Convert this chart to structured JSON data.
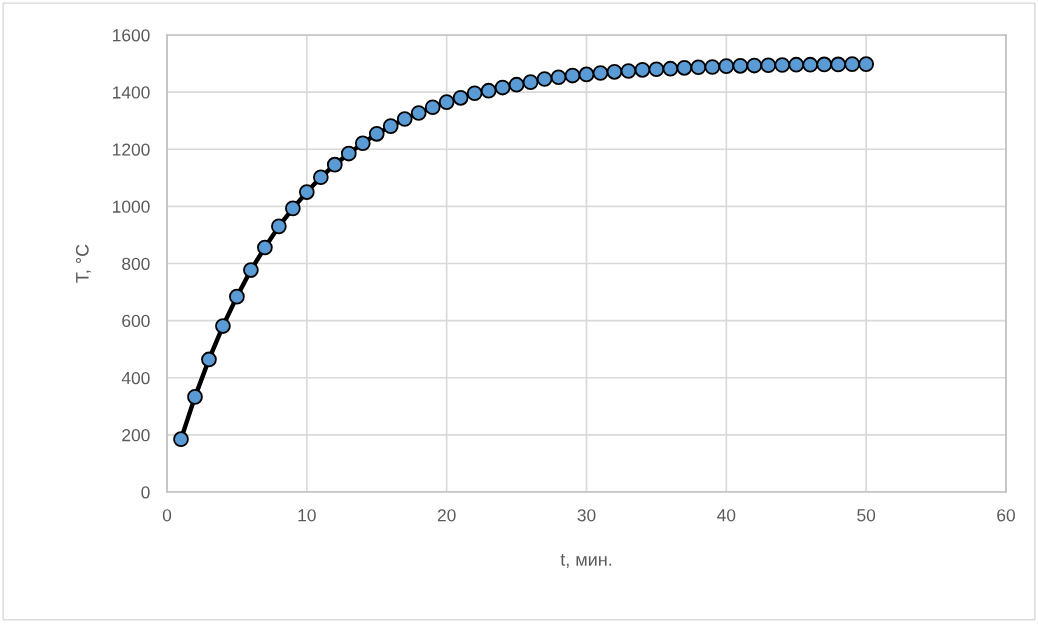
{
  "chart_data": {
    "type": "line",
    "xlabel": "t, мин.",
    "ylabel": "T, °C",
    "x": [
      1,
      2,
      3,
      4,
      5,
      6,
      7,
      8,
      9,
      10,
      11,
      12,
      13,
      14,
      15,
      16,
      17,
      18,
      19,
      20,
      21,
      22,
      23,
      24,
      25,
      26,
      27,
      28,
      29,
      30,
      31,
      32,
      33,
      34,
      35,
      36,
      37,
      38,
      39,
      40,
      41,
      42,
      43,
      44,
      45,
      46,
      47,
      48,
      49,
      50
    ],
    "series": [
      {
        "color": "#5b9bd5",
        "values": [
          185,
          333,
          464,
          581,
          684,
          777,
          856,
          930,
          993,
          1050,
          1102,
          1146,
          1185,
          1221,
          1254,
          1281,
          1306,
          1327,
          1347,
          1365,
          1380,
          1396,
          1405,
          1416,
          1426,
          1435,
          1446,
          1452,
          1458,
          1462,
          1467,
          1471,
          1474,
          1478,
          1480,
          1482,
          1485,
          1487,
          1488,
          1491,
          1492,
          1493,
          1494,
          1495,
          1496,
          1496,
          1497,
          1497,
          1498,
          1498
        ]
      }
    ],
    "xlim": [
      0,
      60
    ],
    "xticks": [
      0,
      10,
      20,
      30,
      40,
      50,
      60
    ],
    "ylim": [
      0,
      1600
    ],
    "yticks": [
      0,
      200,
      400,
      600,
      800,
      1000,
      1200,
      1400,
      1600
    ],
    "grid": true,
    "marker": "circle",
    "line_style": "solid"
  }
}
